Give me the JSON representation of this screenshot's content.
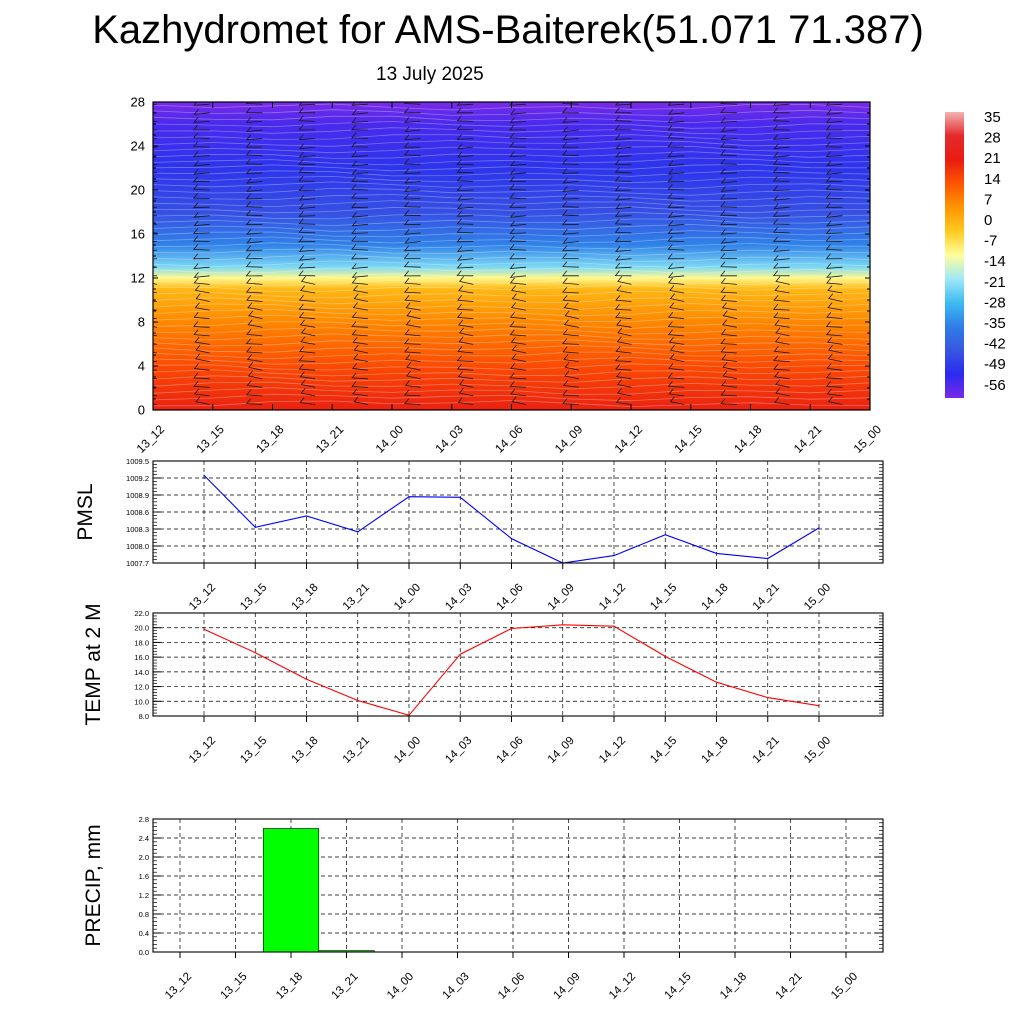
{
  "header": {
    "title": "Kazhydromet for AMS-Baiterek(51.071 71.387)",
    "subtitle": "13 July 2025"
  },
  "time_labels": [
    "13_12",
    "13_15",
    "13_18",
    "13_21",
    "14_00",
    "14_03",
    "14_06",
    "14_09",
    "14_12",
    "14_15",
    "14_18",
    "14_21",
    "15_00"
  ],
  "chart_data": [
    {
      "type": "heatmap",
      "name": "vertical-temperature-section",
      "x": [
        "13_12",
        "13_15",
        "13_18",
        "13_21",
        "14_00",
        "14_03",
        "14_06",
        "14_09",
        "14_12",
        "14_15",
        "14_18",
        "14_21",
        "15_00"
      ],
      "ylim": [
        0,
        28
      ],
      "yticks": [
        0,
        4,
        8,
        12,
        16,
        20,
        24,
        28
      ],
      "grid": false,
      "colorbar": {
        "labels": [
          "35",
          "28",
          "21",
          "14",
          "7",
          "0",
          "-7",
          "-14",
          "-21",
          "-28",
          "-35",
          "-42",
          "-49",
          "-56"
        ],
        "range": [
          -60,
          38
        ],
        "colors": [
          "#f2b3b3",
          "#e52a2a",
          "#e81c12",
          "#ff5500",
          "#ff9500",
          "#ffca20",
          "#ffff9a",
          "#a0e8f8",
          "#3cbcf0",
          "#2f7ee8",
          "#3856e0",
          "#2a2af0",
          "#7a2ae8"
        ],
        "placement": "right"
      },
      "profile": [
        {
          "level": 0,
          "value": 21
        },
        {
          "level": 4,
          "value": 15
        },
        {
          "level": 8,
          "value": 7
        },
        {
          "level": 11,
          "value": 0
        },
        {
          "level": 12,
          "value": -10
        },
        {
          "level": 13,
          "value": -22
        },
        {
          "level": 15,
          "value": -35
        },
        {
          "level": 18,
          "value": -45
        },
        {
          "level": 22,
          "value": -50
        },
        {
          "level": 26,
          "value": -55
        },
        {
          "level": 28,
          "value": -60
        }
      ],
      "wind_barbs": true
    },
    {
      "type": "line",
      "name": "pmsl",
      "ylabel": "PMSL",
      "x": [
        "13_12",
        "13_15",
        "13_18",
        "13_21",
        "14_00",
        "14_03",
        "14_06",
        "14_09",
        "14_12",
        "14_15",
        "14_18",
        "14_21",
        "15_00"
      ],
      "values": [
        1009.25,
        1008.33,
        1008.53,
        1008.25,
        1008.87,
        1008.86,
        1008.13,
        1007.7,
        1007.83,
        1008.2,
        1007.87,
        1007.78,
        1008.32
      ],
      "ylim": [
        1007.7,
        1009.5
      ],
      "yticks": [
        "1007.7",
        "1008.0",
        "1008.3",
        "1008.6",
        "1008.9",
        "1009.2",
        "1009.5"
      ],
      "color": "#0000ff",
      "grid": true
    },
    {
      "type": "line",
      "name": "temp-2m",
      "ylabel": "TEMP at 2 M",
      "x": [
        "13_12",
        "13_15",
        "13_18",
        "13_21",
        "14_00",
        "14_03",
        "14_06",
        "14_09",
        "14_12",
        "14_15",
        "14_18",
        "14_21",
        "15_00"
      ],
      "values": [
        19.8,
        16.6,
        13.0,
        10.1,
        8.1,
        16.4,
        19.9,
        20.4,
        20.2,
        16.1,
        12.6,
        10.5,
        9.4
      ],
      "ylim": [
        8.0,
        22.0
      ],
      "yticks": [
        "8.0",
        "10.0",
        "12.0",
        "14.0",
        "16.0",
        "18.0",
        "20.0",
        "22.0"
      ],
      "color": "#ff0000",
      "grid": true
    },
    {
      "type": "bar",
      "name": "precip",
      "ylabel": "PRECIP, mm",
      "categories": [
        "13_12",
        "13_15",
        "13_18",
        "13_21",
        "14_00",
        "14_03",
        "14_06",
        "14_09",
        "14_12",
        "14_15",
        "14_18",
        "14_21",
        "15_00"
      ],
      "values": [
        0,
        0,
        2.6,
        0.03,
        0,
        0,
        0,
        0,
        0,
        0,
        0,
        0,
        0
      ],
      "ylim": [
        0,
        2.8
      ],
      "yticks": [
        "0.0",
        "0.4",
        "0.8",
        "1.2",
        "1.6",
        "2.0",
        "2.4",
        "2.8"
      ],
      "color": "#00ff00",
      "grid": true
    }
  ]
}
